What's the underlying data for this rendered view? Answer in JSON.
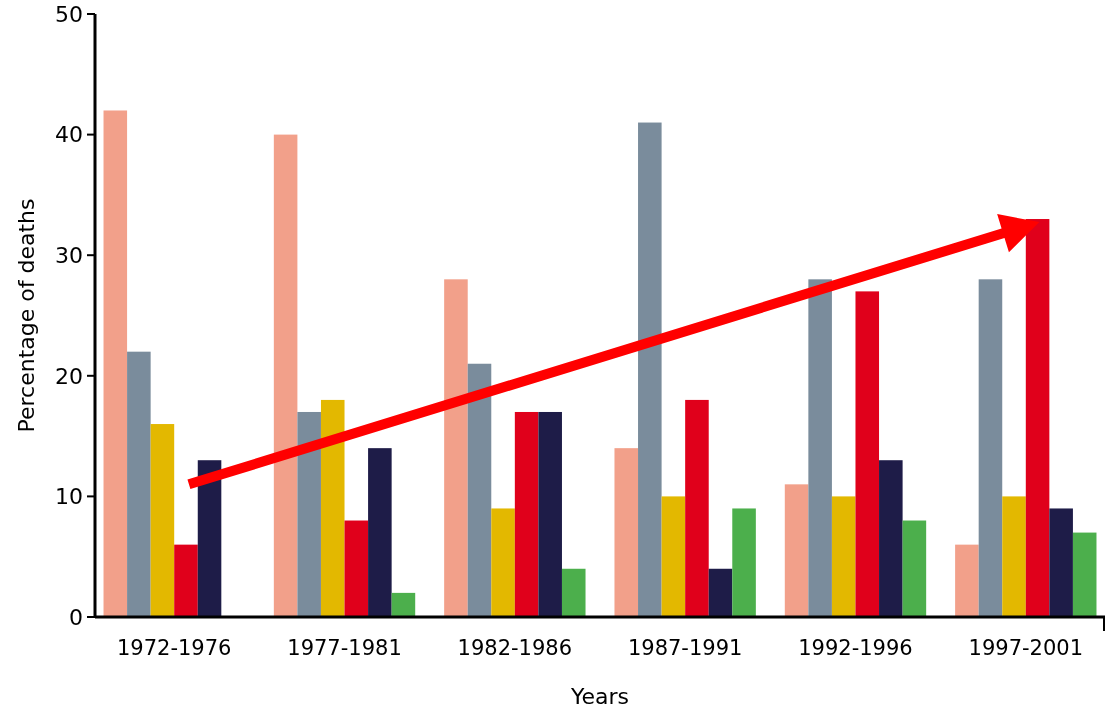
{
  "chart_data": {
    "type": "bar",
    "xlabel": "Years",
    "ylabel": "Percentage of deaths",
    "categories": [
      "1972-1976",
      "1977-1981",
      "1982-1986",
      "1987-1991",
      "1992-1996",
      "1997-2001"
    ],
    "series": [
      {
        "color": "#f2a08a",
        "values": [
          42,
          40,
          28,
          14,
          11,
          6
        ]
      },
      {
        "color": "#7a8c9c",
        "values": [
          22,
          17,
          21,
          41,
          28,
          28
        ]
      },
      {
        "color": "#e3b800",
        "values": [
          16,
          18,
          9,
          10,
          10,
          10
        ]
      },
      {
        "color": "#e0001b",
        "values": [
          6,
          8,
          17,
          18,
          27,
          33
        ]
      },
      {
        "color": "#1e1c48",
        "values": [
          13,
          14,
          17,
          4,
          13,
          9
        ]
      },
      {
        "color": "#4caf4c",
        "values": [
          0,
          2,
          4,
          9,
          8,
          7
        ]
      }
    ],
    "ylim": [
      0,
      50
    ],
    "yticks": [
      0,
      10,
      20,
      30,
      40,
      50
    ],
    "grid": false
  }
}
